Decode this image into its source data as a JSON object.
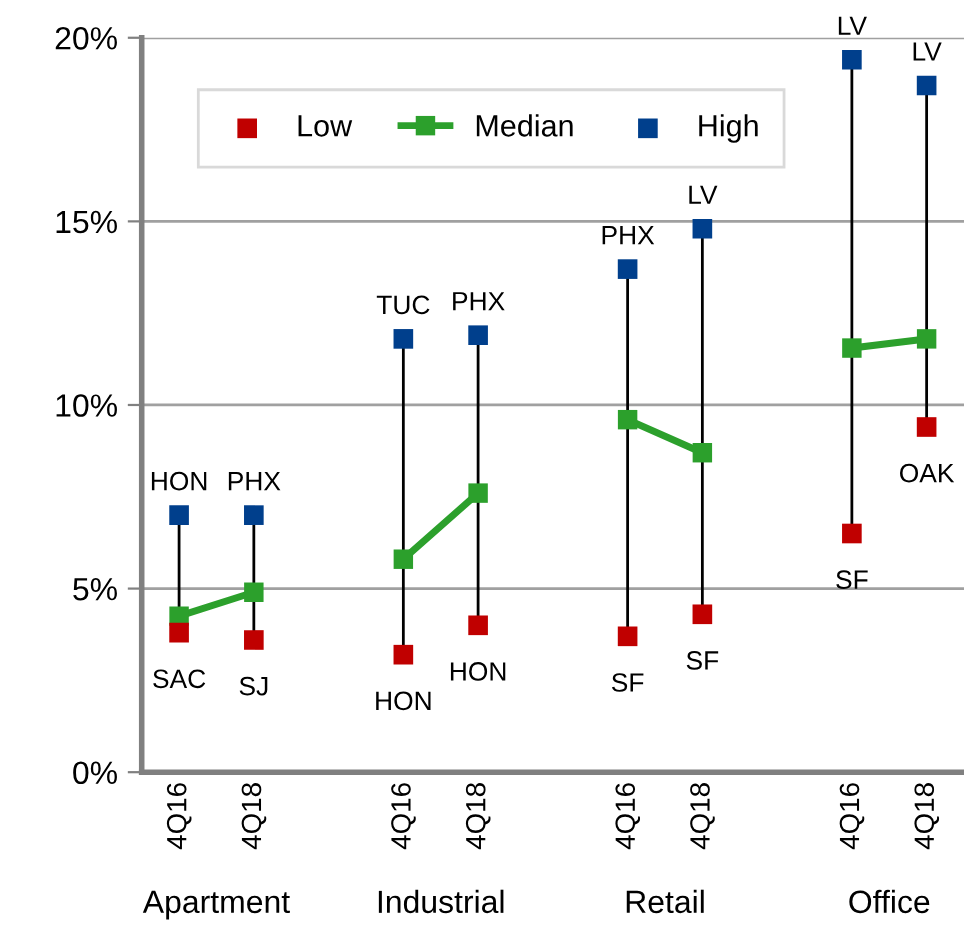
{
  "chart_data": {
    "type": "line",
    "categories": [
      "4Q16",
      "4Q18",
      null,
      "4Q16",
      "4Q18",
      null,
      "4Q16",
      "4Q18",
      null,
      "4Q16",
      "4Q18"
    ],
    "series": [
      {
        "name": "Low",
        "type": "scatter",
        "marker": "square",
        "color": "#c00000",
        "values": [
          3.8,
          3.6,
          null,
          3.2,
          4.0,
          null,
          3.7,
          4.3,
          null,
          6.5,
          9.4
        ],
        "value_labels": [
          "SAC",
          "SJ",
          null,
          "HON",
          "HON",
          null,
          "SF",
          "SF",
          null,
          "SF",
          "OAK"
        ]
      },
      {
        "name": "Median",
        "type": "line",
        "marker": "square",
        "color": "#2ca02c",
        "values": [
          4.25,
          4.9,
          null,
          5.8,
          7.6,
          null,
          9.6,
          8.7,
          null,
          11.55,
          11.8
        ]
      },
      {
        "name": "High",
        "type": "scatter",
        "marker": "square",
        "color": "#003f8c",
        "values": [
          7.0,
          7.0,
          null,
          11.8,
          11.9,
          null,
          13.7,
          14.8,
          null,
          19.4,
          18.7
        ],
        "value_labels": [
          "HON",
          "PHX",
          null,
          "TUC",
          "PHX",
          null,
          "PHX",
          "LV",
          null,
          "LV",
          "LV"
        ]
      }
    ],
    "annotations": [
      "Apartment",
      "Industrial",
      "Retail",
      "Office"
    ],
    "ylim": [
      0,
      20
    ],
    "yticks": [
      {
        "value": 0,
        "label": "0%"
      },
      {
        "value": 5,
        "label": "5%"
      },
      {
        "value": 10,
        "label": "10%"
      },
      {
        "value": 15,
        "label": "15%"
      },
      {
        "value": 20,
        "label": "20%"
      }
    ],
    "grid": "y",
    "legend": "top"
  }
}
